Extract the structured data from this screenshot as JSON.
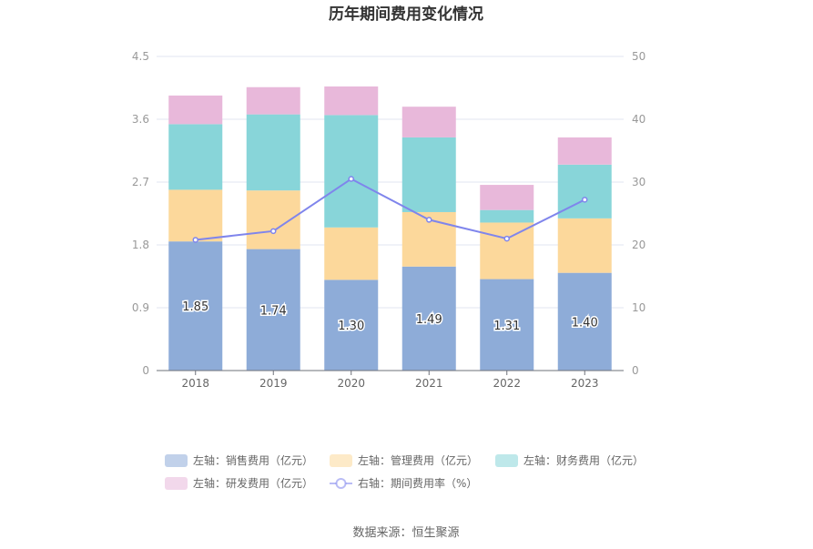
{
  "chart_data": {
    "type": "bar",
    "title": "历年期间费用变化情况",
    "categories": [
      "2018",
      "2019",
      "2020",
      "2021",
      "2022",
      "2023"
    ],
    "stacked": true,
    "series": [
      {
        "name": "左轴：销售费用（亿元）",
        "axis": "left",
        "type": "bar",
        "color": "#8eacd8",
        "values": [
          1.85,
          1.74,
          1.3,
          1.49,
          1.31,
          1.4
        ],
        "labels": [
          "1.85",
          "1.74",
          "1.30",
          "1.49",
          "1.31",
          "1.40"
        ]
      },
      {
        "name": "左轴：管理费用（亿元）",
        "axis": "left",
        "type": "bar",
        "color": "#fcd89b",
        "values": [
          0.74,
          0.84,
          0.75,
          0.78,
          0.81,
          0.78
        ]
      },
      {
        "name": "左轴：财务费用（亿元）",
        "axis": "left",
        "type": "bar",
        "color": "#88d5d9",
        "values": [
          0.94,
          1.09,
          1.61,
          1.07,
          0.18,
          0.77
        ]
      },
      {
        "name": "左轴：研发费用（亿元）",
        "axis": "left",
        "type": "bar",
        "color": "#e8b8da",
        "values": [
          0.41,
          0.39,
          0.41,
          0.44,
          0.36,
          0.39
        ]
      },
      {
        "name": "右轴：期间费用率（%）",
        "axis": "right",
        "type": "line",
        "color": "#7f85ec",
        "values": [
          20.8,
          22.2,
          30.5,
          24.0,
          21.0,
          27.2
        ]
      }
    ],
    "left_axis": {
      "ylim": [
        0,
        4.5
      ],
      "ticks": [
        "0",
        "0.9",
        "1.8",
        "2.7",
        "3.6",
        "4.5"
      ]
    },
    "right_axis": {
      "ylim": [
        0,
        50
      ],
      "ticks": [
        "0",
        "10",
        "20",
        "30",
        "40",
        "50"
      ]
    },
    "grid": true,
    "legend_position": "bottom",
    "source": "数据来源：恒生聚源"
  }
}
